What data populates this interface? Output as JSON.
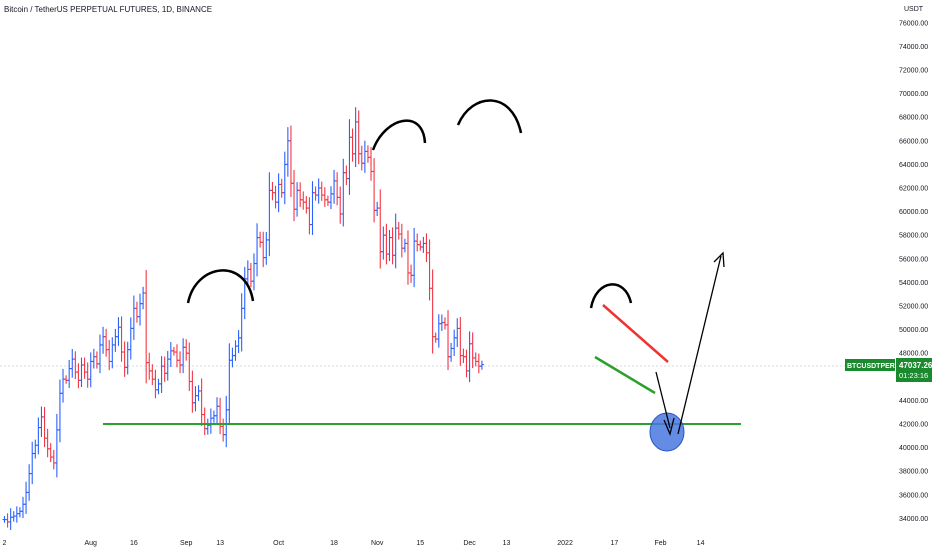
{
  "header": {
    "title": "Bitcoin / TetherUS PERPETUAL FUTURES, 1D, BINANCE"
  },
  "axis": {
    "currency_label": "USDT"
  },
  "price_tag": {
    "symbol": "BTCUSDTPERP",
    "price": "47037.26",
    "countdown": "01:23:16"
  },
  "colors": {
    "up": "#2962ff",
    "down": "#f23645",
    "support": "#2ca02c",
    "upper_trendline": "#ef3333",
    "target_circle": "#4a78e0",
    "drawing": "#000000",
    "tag_bg": "#1b8a2e"
  },
  "chart_data": {
    "type": "bar",
    "style": "ohlc",
    "y_range": [
      33500,
      77500
    ],
    "y_ticks": [
      34000,
      36000,
      38000,
      40000,
      42000,
      44000,
      46000,
      48000,
      50000,
      52000,
      54000,
      56000,
      58000,
      60000,
      62000,
      64000,
      66000,
      68000,
      70000,
      72000,
      74000,
      76000
    ],
    "y_tick_labels": [
      "34000.00",
      "36000.00",
      "38000.00",
      "40000.00",
      "42000.00",
      "44000.00",
      "46000.00",
      "48000.00",
      "50000.00",
      "52000.00",
      "54000.00",
      "56000.00",
      "58000.00",
      "60000.00",
      "62000.00",
      "64000.00",
      "66000.00",
      "68000.00",
      "70000.00",
      "72000.00",
      "74000.00",
      "76000.00"
    ],
    "x_ticks": [
      {
        "label": "2",
        "day": 0
      },
      {
        "label": "Aug",
        "day": 28
      },
      {
        "label": "16",
        "day": 42
      },
      {
        "label": "Sep",
        "day": 59
      },
      {
        "label": "13",
        "day": 70
      },
      {
        "label": "Oct",
        "day": 89
      },
      {
        "label": "18",
        "day": 107
      },
      {
        "label": "Nov",
        "day": 121
      },
      {
        "label": "15",
        "day": 135
      },
      {
        "label": "Dec",
        "day": 151
      },
      {
        "label": "13",
        "day": 163
      },
      {
        "label": "2022",
        "day": 182
      },
      {
        "label": "17",
        "day": 198
      },
      {
        "label": "Feb",
        "day": 213
      },
      {
        "label": "14",
        "day": 226
      }
    ],
    "support_level": 42000,
    "current_price": 47037.26,
    "closes": [
      33900,
      33700,
      34100,
      34200,
      34400,
      34600,
      35200,
      36200,
      37800,
      39500,
      40200,
      41700,
      42600,
      40800,
      39900,
      39200,
      38700,
      41500,
      44600,
      45800,
      45700,
      46700,
      47500,
      46400,
      45700,
      47000,
      46400,
      45800,
      47300,
      47700,
      47100,
      48700,
      49400,
      48300,
      47300,
      48700,
      49400,
      50200,
      48100,
      46800,
      48300,
      50100,
      51800,
      51100,
      52200,
      53100,
      47200,
      46500,
      45800,
      44900,
      45400,
      46900,
      46300,
      47500,
      48200,
      48100,
      47400,
      47000,
      48500,
      48000,
      45600,
      43800,
      44400,
      44800,
      42800,
      41600,
      41900,
      42500,
      42700,
      43500,
      41800,
      41100,
      43200,
      47400,
      47800,
      48600,
      49300,
      51800,
      54300,
      55100,
      54100,
      55600,
      57800,
      57400,
      56100,
      57600,
      61800,
      61600,
      60800,
      62300,
      61600,
      64000,
      66000,
      62400,
      60200,
      61800,
      61000,
      60800,
      60300,
      58900,
      61600,
      61400,
      62000,
      61400,
      61000,
      60800,
      61500,
      62600,
      61200,
      59800,
      63300,
      62800,
      66300,
      64900,
      67600,
      64900,
      64100,
      65100,
      64600,
      63400,
      60100,
      60300,
      56600,
      58000,
      56400,
      57800,
      56300,
      58600,
      58100,
      56900,
      57300,
      54800,
      54600,
      57500,
      57200,
      57000,
      57300,
      56500,
      53500,
      49400,
      49200,
      50500,
      50600,
      50400,
      47700,
      48400,
      49300,
      50100,
      47800,
      47700,
      46500,
      48800,
      47600,
      47300,
      46900,
      47037
    ]
  }
}
